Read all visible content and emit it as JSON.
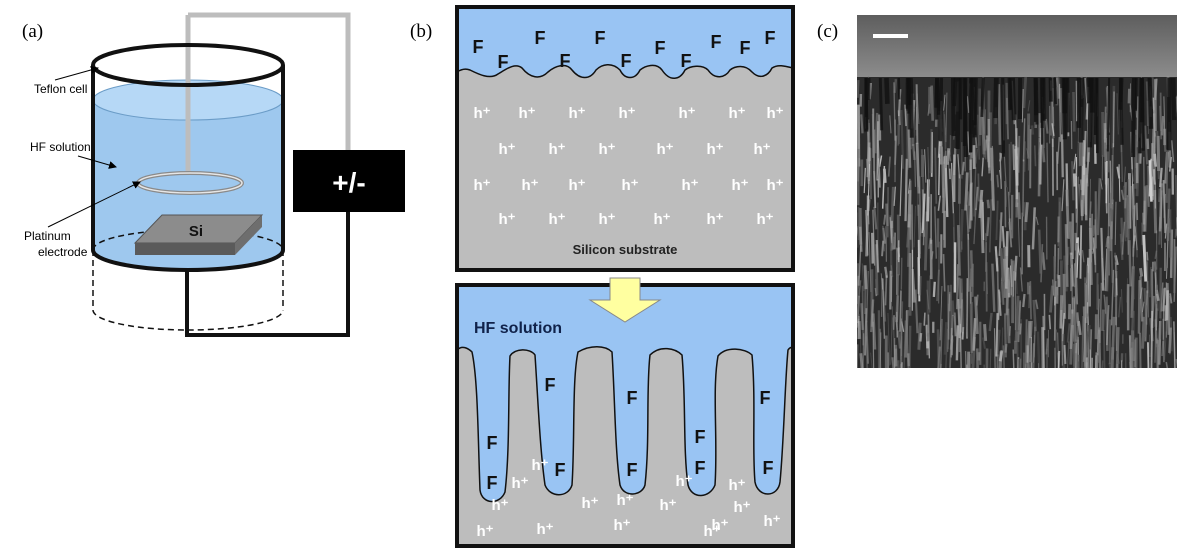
{
  "panel_a": {
    "label": "(a)",
    "teflon_cell": "Teflon cell",
    "hf_solution": "HF solution",
    "platinum_electrode": [
      "Platinum",
      "electrode"
    ],
    "si": "Si",
    "power": "+/-"
  },
  "panel_b": {
    "label": "(b)",
    "top": {
      "f": [
        "F",
        "F",
        "F",
        "F",
        "F",
        "F",
        "F",
        "F",
        "F",
        "F",
        "F"
      ],
      "h": [
        "h⁺",
        "h⁺",
        "h⁺",
        "h⁺",
        "h⁺",
        "h⁺",
        "h⁺",
        "h⁺",
        "h⁺",
        "h⁺",
        "h⁺",
        "h⁺",
        "h⁺",
        "h⁺",
        "h⁺",
        "h⁺",
        "h⁺",
        "h⁺",
        "h⁺",
        "h⁺",
        "h⁺",
        "h⁺",
        "h⁺",
        "h⁺",
        "h⁺",
        "h⁺"
      ],
      "substrate": "Silicon substrate"
    },
    "bottom": {
      "hf_solution": "HF solution",
      "f": [
        "F",
        "F",
        "F",
        "F",
        "F",
        "F",
        "F",
        "F",
        "F",
        "F"
      ],
      "h": [
        "h⁺",
        "h⁺",
        "h⁺",
        "h⁺",
        "h⁺",
        "h⁺",
        "h⁺",
        "h⁺",
        "h⁺",
        "h⁺",
        "h⁺",
        "h⁺",
        "h⁺",
        "h⁺",
        "h⁺"
      ]
    }
  },
  "panel_c": {
    "label": "(c)"
  }
}
